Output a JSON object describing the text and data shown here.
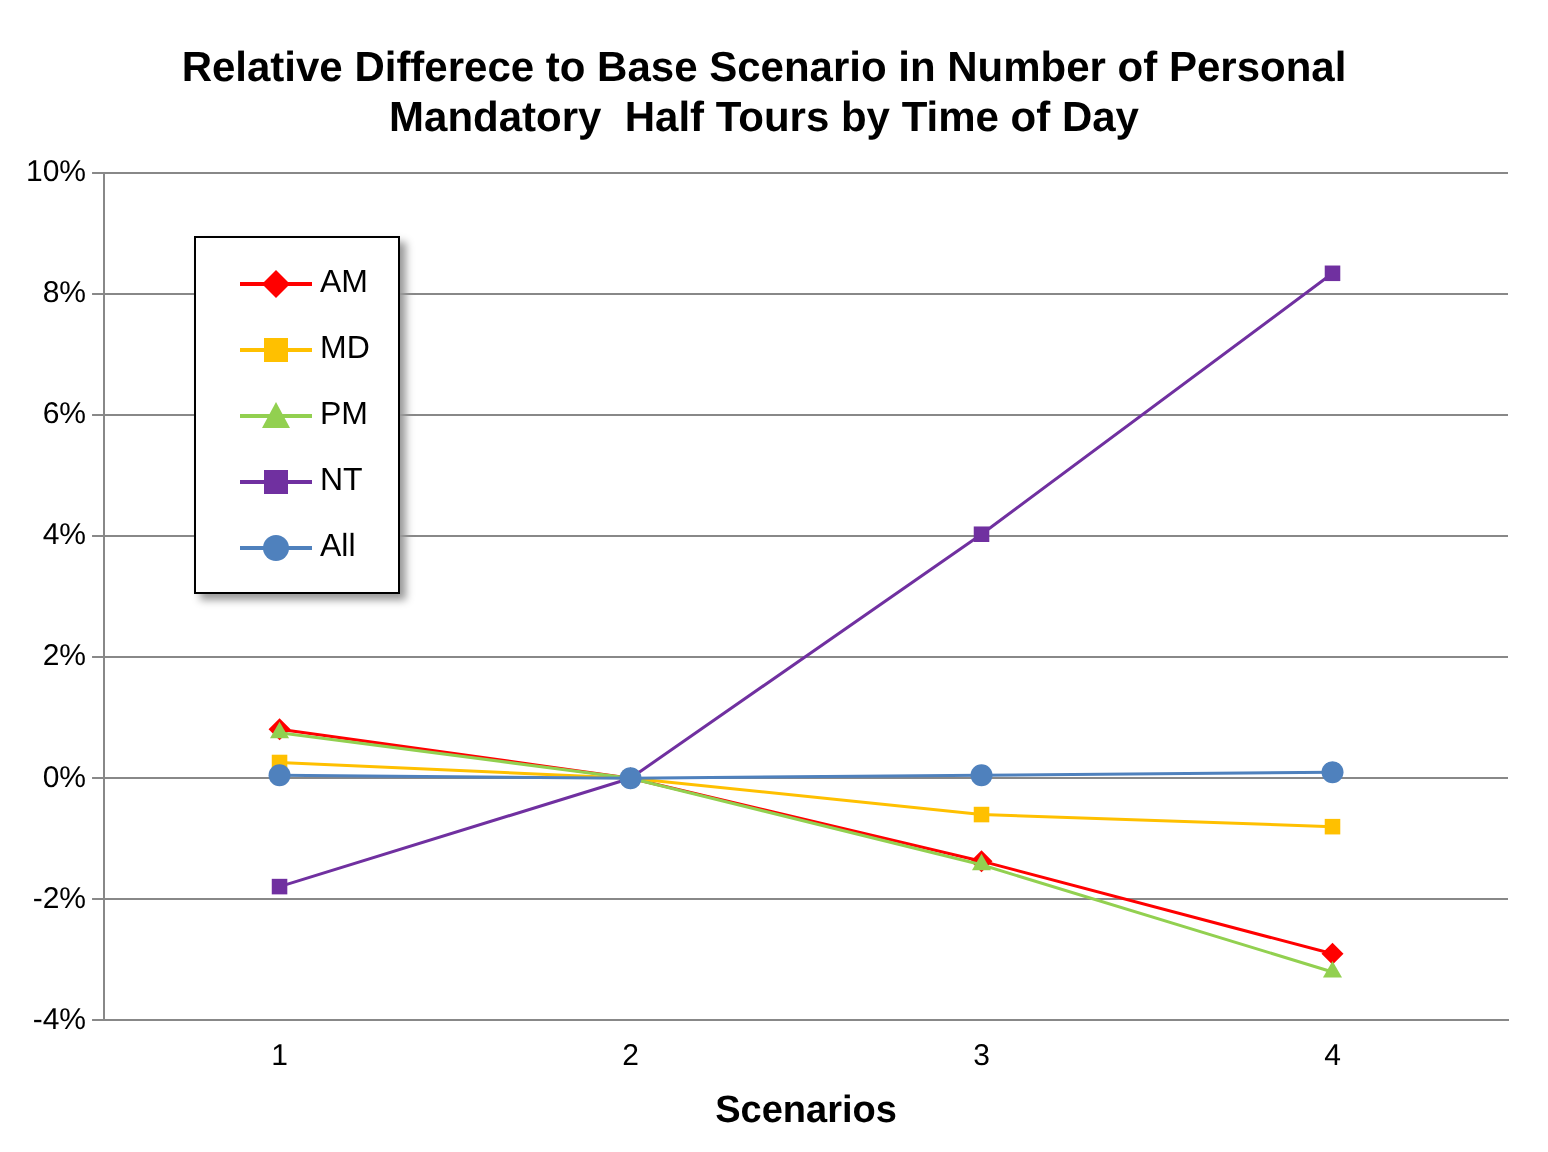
{
  "chart_data": {
    "type": "line",
    "title": "Relative Differece to Base Scenario in Number of Personal Mandatory  Half Tours by Time of Day",
    "xlabel": "Scenarios",
    "categories": [
      "1",
      "2",
      "3",
      "4"
    ],
    "series": [
      {
        "name": "AM",
        "color": "#ff0000",
        "marker": "diamond",
        "values": [
          0.81,
          0,
          -1.37,
          -2.9
        ]
      },
      {
        "name": "MD",
        "color": "#ffc000",
        "marker": "square",
        "values": [
          0.26,
          0,
          -0.6,
          -0.8
        ]
      },
      {
        "name": "PM",
        "color": "#92d050",
        "marker": "triangle",
        "values": [
          0.75,
          0,
          -1.43,
          -3.2
        ]
      },
      {
        "name": "NT",
        "color": "#7030a0",
        "marker": "square",
        "values": [
          -1.79,
          0,
          4.03,
          8.34
        ]
      },
      {
        "name": "All",
        "color": "#4f81bd",
        "marker": "circle",
        "values": [
          0.05,
          0,
          0.05,
          0.1
        ]
      }
    ],
    "ylim": [
      -4,
      10
    ],
    "yticks": [
      {
        "value": -4,
        "label": "-4%"
      },
      {
        "value": -2,
        "label": "-2%"
      },
      {
        "value": 0,
        "label": "0%"
      },
      {
        "value": 2,
        "label": "2%"
      },
      {
        "value": 4,
        "label": "4%"
      },
      {
        "value": 6,
        "label": "6%"
      },
      {
        "value": 8,
        "label": "8%"
      },
      {
        "value": 10,
        "label": "10%"
      }
    ],
    "grid": "y",
    "legend": "top left",
    "line_style": "solid"
  }
}
